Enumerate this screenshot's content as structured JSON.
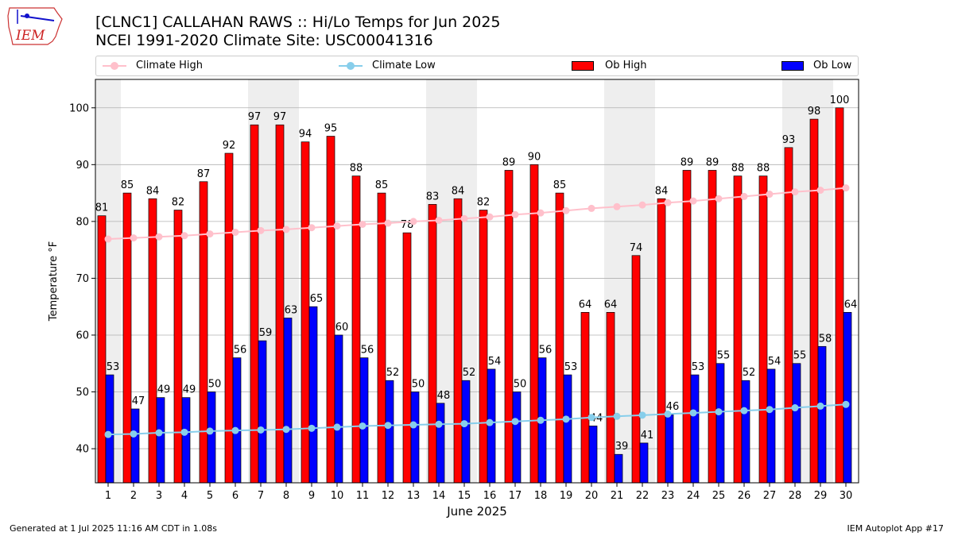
{
  "header": {
    "logo_text": "IEM",
    "title_line1": "[CLNC1] CALLAHAN RAWS :: Hi/Lo Temps for Jun 2025",
    "title_line2": "NCEI 1991-2020 Climate Site: USC00041316"
  },
  "legend": {
    "climate_high": "Climate High",
    "climate_low": "Climate Low",
    "ob_high": "Ob High",
    "ob_low": "Ob Low"
  },
  "footer": {
    "generated": "Generated at 1 Jul 2025 11:16 AM CDT in 1.08s",
    "app": "IEM Autoplot App #17"
  },
  "colors": {
    "ob_high": "#ff0000",
    "ob_low": "#0000ff",
    "climate_high": "#ffc0cb",
    "climate_low": "#87ceeb",
    "weekend_shade": "#eeeeee",
    "grid": "#b0b0b0"
  },
  "chart_data": {
    "type": "bar",
    "xlabel": "June 2025",
    "ylabel": "Temperature °F",
    "ylim": [
      34,
      105
    ],
    "yticks": [
      40,
      50,
      60,
      70,
      80,
      90,
      100
    ],
    "grid": "horizontal",
    "legend_position": "top",
    "shaded_days": [
      1,
      7,
      8,
      14,
      15,
      21,
      22,
      28,
      29
    ],
    "categories": [
      "1",
      "2",
      "3",
      "4",
      "5",
      "6",
      "7",
      "8",
      "9",
      "10",
      "11",
      "12",
      "13",
      "14",
      "15",
      "16",
      "17",
      "18",
      "19",
      "20",
      "21",
      "22",
      "23",
      "24",
      "25",
      "26",
      "27",
      "28",
      "29",
      "30"
    ],
    "series": [
      {
        "name": "Ob High",
        "kind": "bar",
        "values": [
          81,
          85,
          84,
          82,
          87,
          92,
          97,
          97,
          94,
          95,
          88,
          85,
          78,
          83,
          84,
          82,
          89,
          90,
          85,
          64,
          64,
          74,
          84,
          89,
          89,
          88,
          88,
          93,
          98,
          100
        ]
      },
      {
        "name": "Ob Low",
        "kind": "bar",
        "values": [
          53,
          47,
          49,
          49,
          50,
          56,
          59,
          63,
          65,
          60,
          56,
          52,
          50,
          48,
          52,
          54,
          50,
          56,
          53,
          44,
          39,
          41,
          46,
          53,
          55,
          52,
          54,
          55,
          58,
          64
        ]
      },
      {
        "name": "Climate High",
        "kind": "line",
        "values": [
          76.9,
          77.1,
          77.3,
          77.5,
          77.8,
          78.1,
          78.4,
          78.6,
          78.9,
          79.2,
          79.5,
          79.7,
          80.0,
          80.2,
          80.5,
          80.8,
          81.2,
          81.5,
          81.9,
          82.3,
          82.6,
          82.9,
          83.3,
          83.6,
          84.0,
          84.4,
          84.8,
          85.2,
          85.5,
          85.9
        ]
      },
      {
        "name": "Climate Low",
        "kind": "line",
        "values": [
          42.5,
          42.6,
          42.8,
          42.9,
          43.1,
          43.2,
          43.3,
          43.4,
          43.6,
          43.8,
          44.0,
          44.1,
          44.2,
          44.3,
          44.4,
          44.6,
          44.8,
          45.0,
          45.2,
          45.5,
          45.7,
          45.9,
          46.1,
          46.3,
          46.5,
          46.7,
          46.9,
          47.2,
          47.5,
          47.8
        ]
      }
    ]
  }
}
